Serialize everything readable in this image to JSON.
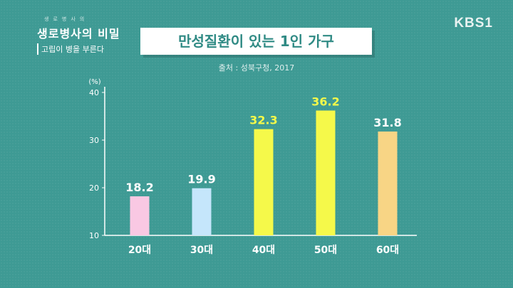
{
  "header": {
    "logo_small": "생로병사의",
    "logo_main": "생로병사의 비밀",
    "logo_sub": "고립이 병을 부른다",
    "channel": "KBS1"
  },
  "chart_data": {
    "type": "bar",
    "title": "만성질환이 있는 1인 가구",
    "source": "출처 : 성북구청, 2017",
    "ylabel": "(%)",
    "ylim": [
      10,
      40
    ],
    "yticks": [
      10,
      20,
      30,
      40
    ],
    "categories": [
      "20대",
      "30대",
      "40대",
      "50대",
      "60대"
    ],
    "values": [
      18.2,
      19.9,
      32.3,
      36.2,
      31.8
    ],
    "bar_colors": [
      "#f9c8e3",
      "#c5e6fb",
      "#f5f94a",
      "#f5f94a",
      "#f8d585"
    ],
    "label_colors": [
      "#ffffff",
      "#ffffff",
      "#f5f94a",
      "#f5f94a",
      "#ffffff"
    ],
    "grid": false
  }
}
